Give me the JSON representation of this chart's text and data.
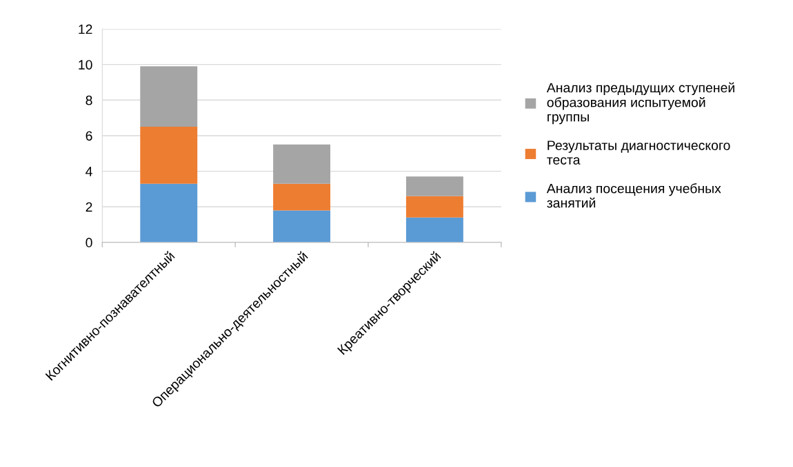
{
  "chart_data": {
    "type": "bar",
    "stacked": true,
    "categories": [
      "Когнитивно-познавателтный",
      "Операционально-деятельностный",
      "Креативно-творческий"
    ],
    "series": [
      {
        "name": "Анализ посещения учебных занятий",
        "color": "#5b9bd5",
        "values": [
          3.3,
          1.8,
          1.4
        ]
      },
      {
        "name": "Результаты диагностического теста",
        "color": "#ed7d31",
        "values": [
          3.2,
          1.5,
          1.2
        ]
      },
      {
        "name": "Анализ предыдущих ступеней образования испытуемой группы",
        "color": "#a5a5a5",
        "values": [
          3.4,
          2.2,
          1.1
        ]
      }
    ],
    "ylim": [
      0,
      12
    ],
    "yticks": [
      0,
      2,
      4,
      6,
      8,
      10,
      12
    ],
    "grid": "y",
    "legend": "right"
  }
}
